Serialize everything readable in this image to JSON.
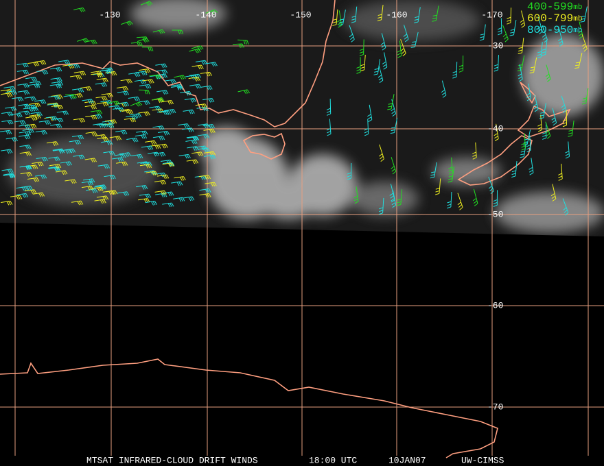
{
  "longitude_labels": [
    "-130",
    "-140",
    "-150",
    "-160",
    "-170"
  ],
  "latitude_labels": [
    "-30",
    "-40",
    "-50",
    "-60",
    "-70"
  ],
  "legend": [
    {
      "range": "400-599",
      "unit": "mb"
    },
    {
      "range": "600-799",
      "unit": "mb"
    },
    {
      "range": "800-950",
      "unit": "mb"
    }
  ],
  "footer": [
    "MTSAT INFRARED-CLOUD DRIFT WINDS",
    "18:00 UTC",
    "10JAN07",
    "UW-CIMSS"
  ]
}
